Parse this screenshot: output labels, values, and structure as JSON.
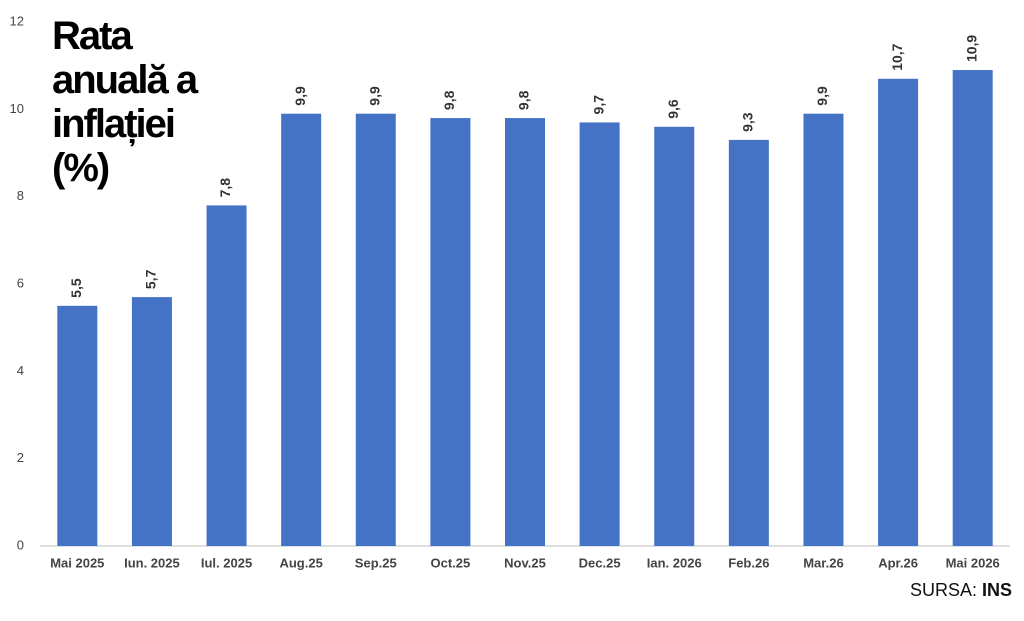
{
  "chart_data": {
    "type": "bar",
    "title": "Rata anuală a inflației (%)",
    "categories": [
      "Mai 2025",
      "Iun. 2025",
      "Iul. 2025",
      "Aug.25",
      "Sep.25",
      "Oct.25",
      "Nov.25",
      "Dec.25",
      "Ian. 2026",
      "Feb.26",
      "Mar.26",
      "Apr.26",
      "Mai 2026"
    ],
    "values": [
      5.5,
      5.7,
      7.8,
      9.9,
      9.9,
      9.8,
      9.8,
      9.7,
      9.6,
      9.3,
      9.9,
      10.7,
      10.9
    ],
    "value_labels": [
      "5,5",
      "5,7",
      "7,8",
      "9,9",
      "9,9",
      "9,8",
      "9,8",
      "9,7",
      "9,6",
      "9,3",
      "9,9",
      "10,7",
      "10,9"
    ],
    "color": "#4472c4",
    "ylim": [
      0,
      12
    ],
    "yticks": [
      0,
      2,
      4,
      6,
      8,
      10,
      12
    ],
    "grid": false,
    "source": {
      "label": "SURSA:",
      "name": "INS"
    }
  }
}
